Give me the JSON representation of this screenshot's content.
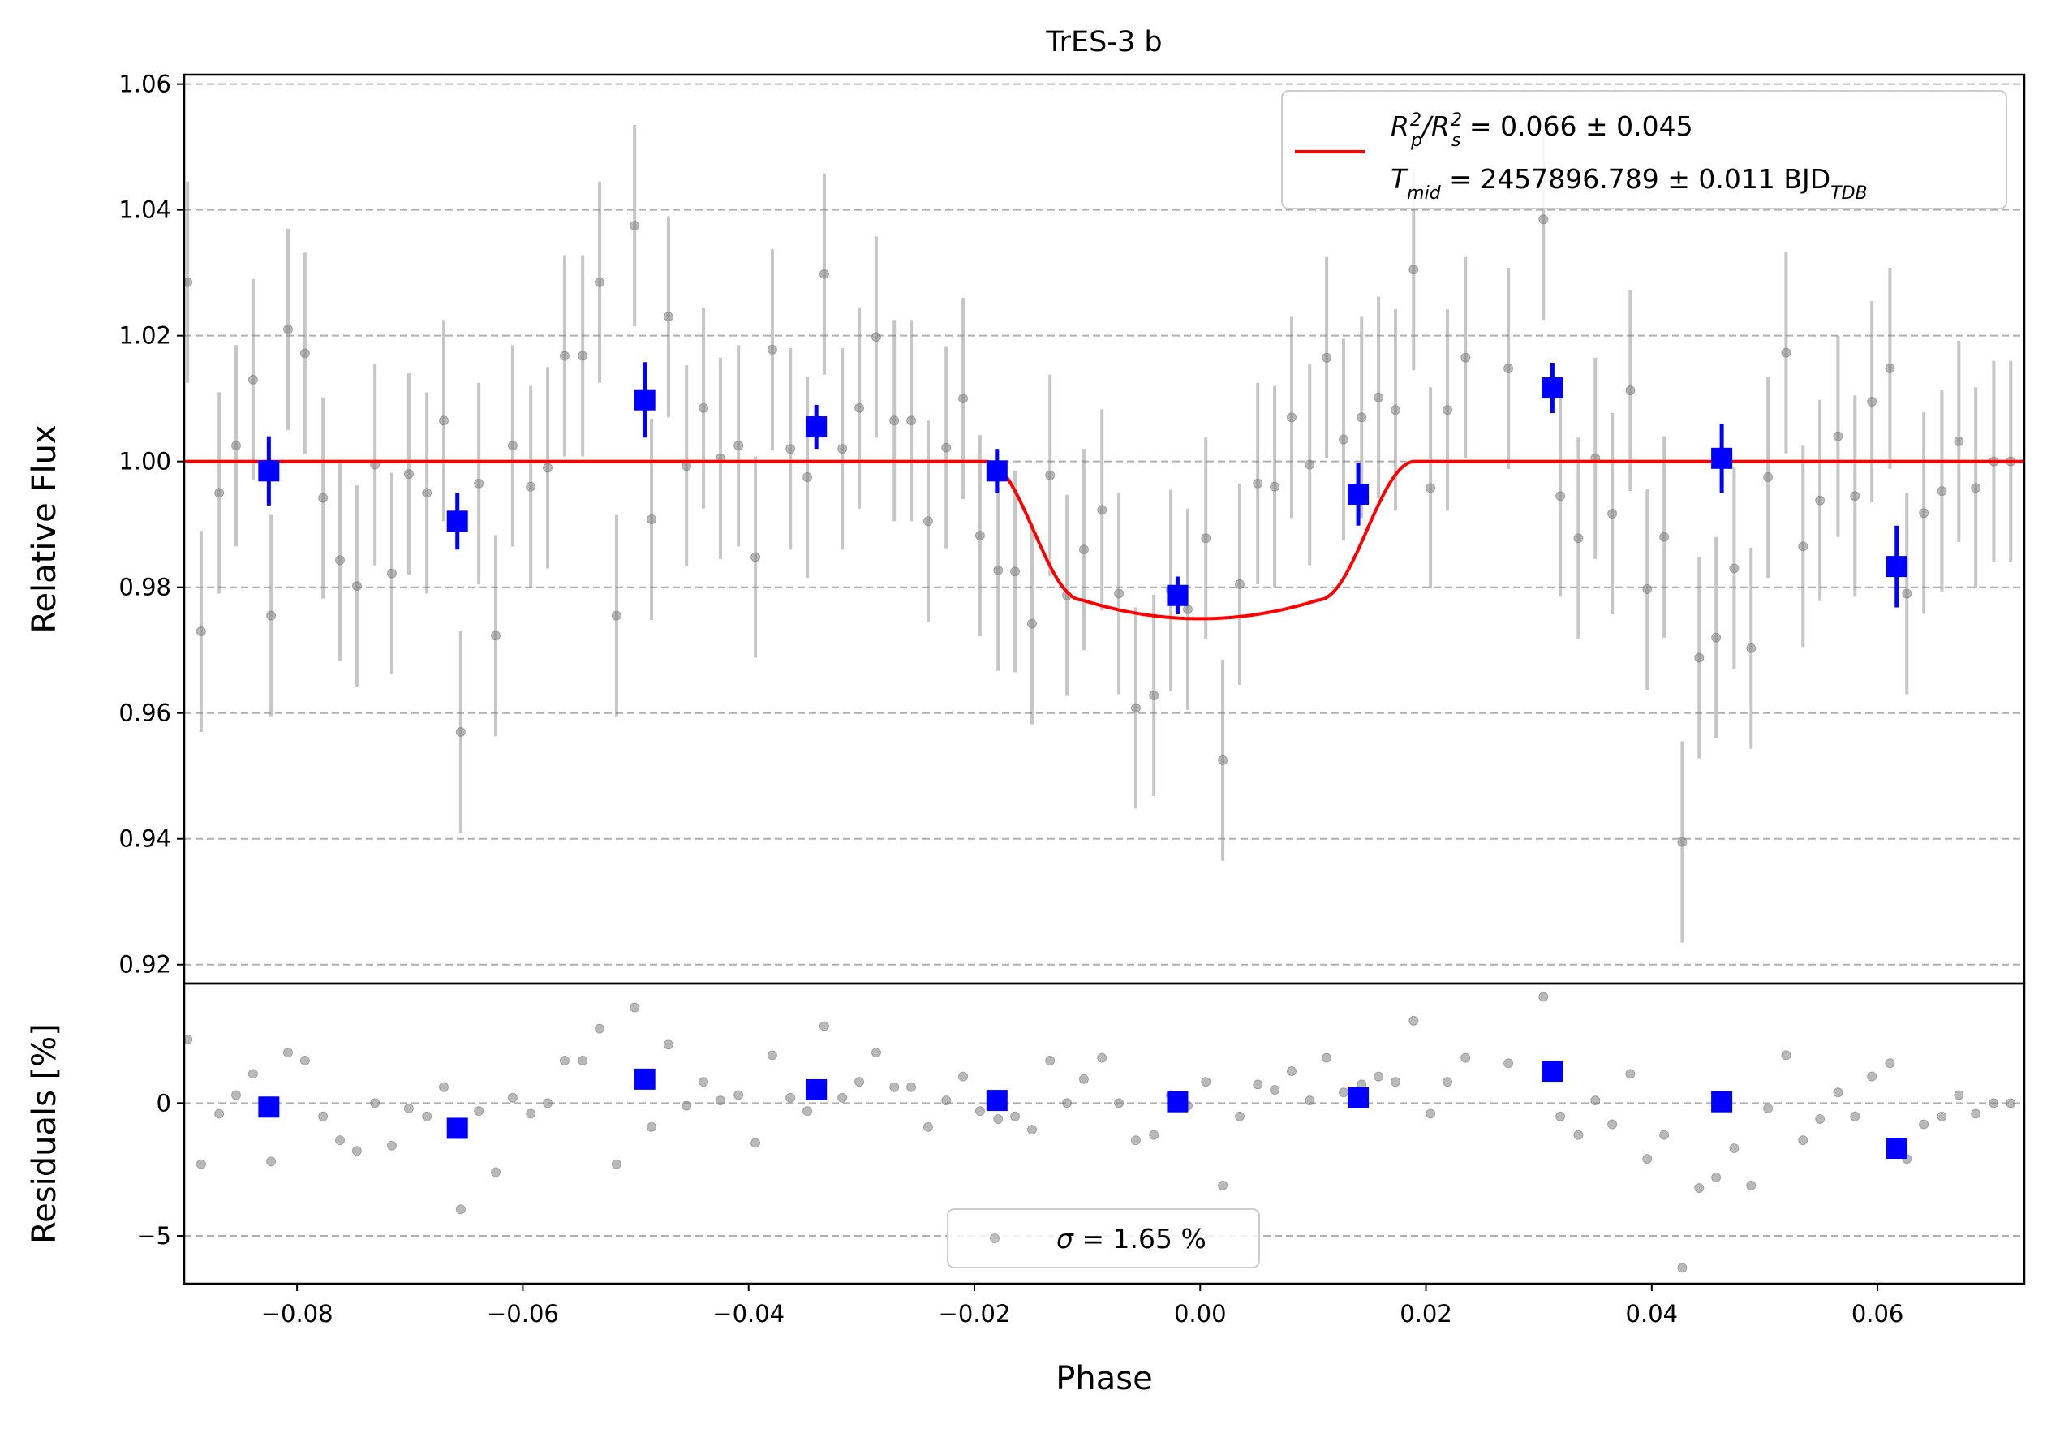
{
  "chart_data": {
    "type": "scatter",
    "title": "TrES-3 b",
    "xlabel": "Phase",
    "xlim": [
      -0.09,
      0.073
    ],
    "xticks": [
      -0.08,
      -0.06,
      -0.04,
      -0.02,
      0.0,
      0.02,
      0.04,
      0.06
    ],
    "xtick_labels": [
      "−0.08",
      "−0.06",
      "−0.04",
      "−0.02",
      "0.00",
      "0.02",
      "0.04",
      "0.06"
    ],
    "grid": "horizontal dashed",
    "top_panel": {
      "ylabel": "Relative Flux",
      "ylim": [
        0.917,
        1.0615
      ],
      "yticks": [
        0.92,
        0.94,
        0.96,
        0.98,
        1.0,
        1.02,
        1.04,
        1.06
      ],
      "ytick_labels": [
        "0.92",
        "0.94",
        "0.96",
        "0.98",
        "1.00",
        "1.02",
        "1.04",
        "1.06"
      ],
      "legend": {
        "placement": "top-right",
        "line1": {
          "label": "R",
          "sub1": "p",
          "sup1": "2",
          "slash": "/R",
          "sub2": "s",
          "sup2": "2",
          "value": " = 0.066 ± 0.045"
        },
        "line2": {
          "label": "T",
          "sub1": "mid",
          "value": " = 2457896.789 ± 0.011 BJD",
          "sub2": "TDB"
        }
      },
      "model": {
        "name": "transit model",
        "color": "#ff0000",
        "baseline": 1.0,
        "depth_min": 0.975,
        "t1": -0.019,
        "t2": -0.0105,
        "t3": 0.0105,
        "t4": 0.019
      },
      "raw_points": {
        "color": "#808080",
        "err": 0.016,
        "x": [
          -0.0897,
          -0.0885,
          -0.0869,
          -0.0854,
          -0.0839,
          -0.0823,
          -0.0808,
          -0.0793,
          -0.0777,
          -0.0762,
          -0.0747,
          -0.0731,
          -0.0716,
          -0.0701,
          -0.0685,
          -0.067,
          -0.0655,
          -0.0639,
          -0.0624,
          -0.0609,
          -0.0593,
          -0.0578,
          -0.0563,
          -0.0547,
          -0.0532,
          -0.0517,
          -0.0501,
          -0.0486,
          -0.0471,
          -0.0455,
          -0.044,
          -0.0425,
          -0.0409,
          -0.0394,
          -0.0379,
          -0.0363,
          -0.0348,
          -0.0333,
          -0.0317,
          -0.0302,
          -0.0287,
          -0.0271,
          -0.0256,
          -0.0241,
          -0.0225,
          -0.021,
          -0.0195,
          -0.0179,
          -0.0164,
          -0.0149,
          -0.0133,
          -0.0118,
          -0.0103,
          -0.0087,
          -0.0072,
          -0.0057,
          -0.0041,
          -0.0026,
          -0.0011,
          0.0005,
          0.002,
          0.0035,
          0.0051,
          0.0066,
          0.0081,
          0.0097,
          0.0112,
          0.0127,
          0.0143,
          0.0158,
          0.0173,
          0.0189,
          0.0204,
          0.0219,
          0.0235,
          0.0273,
          0.0304,
          0.0319,
          0.0335,
          0.035,
          0.0365,
          0.0381,
          0.0396,
          0.0411,
          0.0427,
          0.0442,
          0.0457,
          0.0473,
          0.0488,
          0.0503,
          0.0519,
          0.0534,
          0.0549,
          0.0565,
          0.058,
          0.0595,
          0.0611,
          0.0626,
          0.0641,
          0.0657,
          0.0672,
          0.0687,
          0.0703,
          0.0718
        ],
        "y": [
          1.0285,
          0.973,
          0.995,
          1.0025,
          1.013,
          0.9755,
          1.021,
          1.0172,
          0.9942,
          0.9843,
          0.9802,
          0.9995,
          0.9822,
          0.998,
          0.995,
          1.0065,
          0.957,
          0.9965,
          0.9723,
          1.0025,
          0.996,
          0.999,
          1.0168,
          1.0168,
          1.0285,
          0.9755,
          1.0375,
          0.9908,
          1.023,
          0.9993,
          1.0085,
          1.0005,
          1.0025,
          0.9848,
          1.0178,
          1.002,
          0.9975,
          1.0298,
          1.002,
          1.0085,
          1.0198,
          1.0065,
          1.0065,
          0.9905,
          1.0022,
          1.01,
          0.9882,
          0.9827,
          0.9825,
          0.9742,
          0.9978,
          0.9787,
          0.986,
          0.9923,
          0.979,
          0.9608,
          0.9628,
          0.9795,
          0.9765,
          0.9878,
          0.9525,
          0.9805,
          0.9965,
          0.996,
          1.007,
          0.9995,
          1.0165,
          1.0035,
          1.007,
          1.0102,
          1.0082,
          1.0305,
          0.9958,
          1.0082,
          1.0165,
          1.0148,
          1.0385,
          0.9945,
          0.9878,
          1.0005,
          0.9917,
          1.0113,
          0.9797,
          0.988,
          0.9395,
          0.9688,
          0.972,
          0.983,
          0.9703,
          0.9975,
          1.0173,
          0.9865,
          0.9938,
          1.004,
          0.9945,
          1.0095,
          1.0148,
          0.979,
          0.9918,
          0.9953,
          1.0032,
          0.9958,
          1.0,
          1.0
        ]
      },
      "binned_points": {
        "color": "#0000ff",
        "x": [
          -0.0825,
          -0.0658,
          -0.0492,
          -0.034,
          -0.018,
          -0.002,
          0.014,
          0.0312,
          0.0462,
          0.0617
        ],
        "y": [
          0.9985,
          0.9905,
          1.0098,
          1.0055,
          0.9985,
          0.9787,
          0.9948,
          1.0117,
          1.0005,
          0.9833
        ],
        "err": [
          0.0055,
          0.0045,
          0.006,
          0.0035,
          0.0035,
          0.003,
          0.005,
          0.004,
          0.0055,
          0.0065
        ]
      }
    },
    "bottom_panel": {
      "ylabel": "Residuals [%]",
      "ylim": [
        -6.8,
        4.5
      ],
      "yticks": [
        -5,
        0
      ],
      "ytick_labels": [
        "−5",
        "0"
      ],
      "legend": {
        "placement": "bottom-center",
        "sigma_symbol": "σ",
        "text": " = 1.65 %"
      },
      "raw_residuals": [
        2.4,
        -2.3,
        -0.4,
        0.3,
        1.1,
        -2.2,
        1.9,
        1.6,
        -0.5,
        -1.4,
        -1.8,
        0.0,
        -1.6,
        -0.2,
        -0.5,
        0.6,
        -4.0,
        -0.3,
        -2.6,
        0.2,
        -0.4,
        0.0,
        1.6,
        1.6,
        2.8,
        -2.3,
        3.6,
        -0.9,
        2.2,
        -0.1,
        0.8,
        0.1,
        0.3,
        -1.5,
        1.8,
        0.2,
        -0.3,
        2.9,
        0.2,
        0.8,
        1.9,
        0.6,
        0.6,
        -0.9,
        0.1,
        1.0,
        -0.3,
        -0.6,
        -0.5,
        -1.0,
        1.6,
        0.0,
        0.9,
        1.7,
        0.0,
        -1.4,
        -1.2,
        0.3,
        -0.1,
        0.8,
        -3.1,
        -0.5,
        0.7,
        0.5,
        1.2,
        0.1,
        1.7,
        0.4,
        0.7,
        1.0,
        0.8,
        3.1,
        -0.4,
        0.8,
        1.7,
        1.5,
        4.0,
        -0.5,
        -1.2,
        0.1,
        -0.8,
        1.1,
        -2.1,
        -1.2,
        -6.2,
        -3.2,
        -2.8,
        -1.7,
        -3.1,
        -0.2,
        1.8,
        -1.4,
        -0.6,
        0.4,
        -0.5,
        1.0,
        1.5,
        -2.1,
        -0.8,
        -0.5,
        0.3,
        -0.4,
        0.0,
        0.0
      ],
      "binned_residuals": [
        -0.15,
        -0.95,
        0.9,
        0.5,
        0.1,
        0.05,
        0.2,
        1.2,
        0.05,
        -1.7
      ]
    }
  }
}
